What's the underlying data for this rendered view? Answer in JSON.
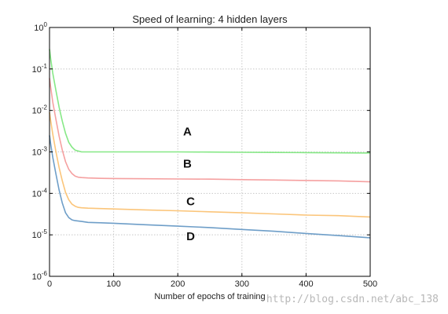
{
  "chart_data": {
    "type": "line",
    "title": "Speed of learning: 4 hidden layers",
    "xlabel": "Number of epochs of training",
    "ylabel": "",
    "xlim": [
      0,
      500
    ],
    "ylim": [
      1e-06,
      1
    ],
    "yscale": "log",
    "grid": true,
    "x_ticks": [
      0,
      100,
      200,
      300,
      400,
      500
    ],
    "y_ticks": [
      {
        "value": 1,
        "base": "10",
        "exp": "0"
      },
      {
        "value": 0.1,
        "base": "10",
        "exp": "-1"
      },
      {
        "value": 0.01,
        "base": "10",
        "exp": "-2"
      },
      {
        "value": 0.001,
        "base": "10",
        "exp": "-3"
      },
      {
        "value": 0.0001,
        "base": "10",
        "exp": "-4"
      },
      {
        "value": 1e-05,
        "base": "10",
        "exp": "-5"
      },
      {
        "value": 1e-06,
        "base": "10",
        "exp": "-6"
      }
    ],
    "series": [
      {
        "label": "A",
        "color": "#86e886",
        "x": [
          0,
          2,
          5,
          10,
          15,
          20,
          25,
          30,
          35,
          40,
          45,
          50,
          60,
          80,
          100,
          150,
          200,
          250,
          300,
          350,
          400,
          450,
          500
        ],
        "y": [
          0.3,
          0.17,
          0.08,
          0.03,
          0.012,
          0.0055,
          0.0028,
          0.0017,
          0.0013,
          0.0011,
          0.00105,
          0.001,
          0.001,
          0.001,
          0.001,
          0.001,
          0.001,
          0.00099,
          0.00098,
          0.00097,
          0.00096,
          0.00095,
          0.00094
        ]
      },
      {
        "label": "B",
        "color": "#f5a0a0",
        "x": [
          0,
          2,
          5,
          10,
          15,
          20,
          25,
          30,
          35,
          40,
          45,
          50,
          60,
          80,
          100,
          150,
          200,
          250,
          300,
          350,
          400,
          450,
          500
        ],
        "y": [
          0.06,
          0.035,
          0.016,
          0.006,
          0.0024,
          0.0011,
          0.00058,
          0.00038,
          0.0003,
          0.00026,
          0.000245,
          0.00024,
          0.000235,
          0.00023,
          0.000228,
          0.000225,
          0.000222,
          0.00022,
          0.000215,
          0.00021,
          0.000205,
          0.0002,
          0.00019
        ]
      },
      {
        "label": "C",
        "color": "#fbc57a",
        "x": [
          0,
          2,
          5,
          10,
          15,
          20,
          25,
          30,
          35,
          40,
          45,
          50,
          60,
          80,
          100,
          150,
          200,
          250,
          300,
          350,
          400,
          450,
          500
        ],
        "y": [
          0.009,
          0.0055,
          0.0027,
          0.001,
          0.00042,
          0.0002,
          0.000105,
          7e-05,
          5.5e-05,
          4.9e-05,
          4.6e-05,
          4.5e-05,
          4.4e-05,
          4.3e-05,
          4.2e-05,
          4e-05,
          3.8e-05,
          3.6e-05,
          3.4e-05,
          3.2e-05,
          3e-05,
          2.9e-05,
          2.7e-05
        ]
      },
      {
        "label": "D",
        "color": "#6e9ec8",
        "x": [
          0,
          2,
          5,
          10,
          15,
          20,
          25,
          30,
          35,
          40,
          45,
          50,
          60,
          80,
          100,
          150,
          200,
          250,
          300,
          350,
          400,
          450,
          500
        ],
        "y": [
          0.0025,
          0.0015,
          0.00075,
          0.00029,
          0.00012,
          5.8e-05,
          3.4e-05,
          2.6e-05,
          2.3e-05,
          2.2e-05,
          2.15e-05,
          2.1e-05,
          2e-05,
          1.95e-05,
          1.9e-05,
          1.75e-05,
          1.62e-05,
          1.5e-05,
          1.35e-05,
          1.22e-05,
          1.08e-05,
          9.6e-06,
          8.5e-06
        ]
      }
    ],
    "annotations": [
      {
        "text": "A",
        "x": 215,
        "y": 0.0025
      },
      {
        "text": "B",
        "x": 215,
        "y": 0.00042
      },
      {
        "text": "C",
        "x": 220,
        "y": 5.2e-05
      },
      {
        "text": "D",
        "x": 220,
        "y": 7.5e-06
      }
    ],
    "watermark": "http://blog.csdn.net/abc_138"
  }
}
